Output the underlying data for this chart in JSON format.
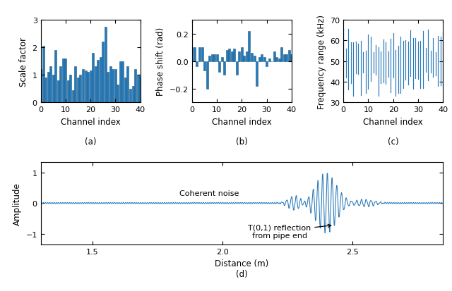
{
  "bar_color": "#2878b8",
  "bar_edge_color": "#1a5f8a",
  "n_channels": 41,
  "scale_factor_values": [
    1.2,
    2.05,
    0.9,
    1.1,
    1.3,
    1.0,
    1.9,
    0.8,
    1.3,
    1.6,
    1.6,
    0.8,
    1.0,
    0.45,
    1.3,
    0.9,
    1.0,
    1.2,
    1.15,
    1.1,
    1.15,
    1.8,
    1.3,
    1.55,
    1.65,
    2.2,
    2.75,
    1.1,
    1.3,
    1.2,
    1.2,
    0.65,
    1.5,
    1.5,
    0.9,
    1.3,
    0.5,
    0.6,
    1.2,
    1.0,
    0.95
  ],
  "phase_shift_values": [
    0.1,
    0.1,
    -0.04,
    0.1,
    0.1,
    -0.07,
    -0.2,
    0.04,
    0.05,
    0.05,
    0.05,
    -0.08,
    0.03,
    -0.1,
    0.08,
    0.09,
    0.07,
    0.09,
    -0.1,
    0.07,
    0.1,
    0.04,
    0.07,
    0.22,
    0.06,
    0.04,
    -0.18,
    0.03,
    0.05,
    0.03,
    -0.04,
    0.02,
    0.0,
    0.07,
    0.03,
    0.02,
    0.1,
    0.05,
    0.05,
    0.08,
    0.05
  ],
  "subplot_labels": [
    "(a)",
    "(b)",
    "(c)",
    "(d)"
  ],
  "xlabel_channels": "Channel index",
  "ylabel_a": "Scale factor",
  "ylabel_b": "Phase shift (rad)",
  "ylabel_c": "Frequency range (kHz)",
  "ylabel_d": "Amplitude",
  "xlabel_d": "Distance (m)",
  "ylim_a": [
    0,
    3
  ],
  "ylim_b": [
    -0.3,
    0.3
  ],
  "ylim_c": [
    30,
    70
  ],
  "xlim_channels": [
    0,
    40
  ],
  "xlim_d": [
    1.3,
    2.85
  ],
  "ylim_d": [
    -1.35,
    1.35
  ],
  "yticks_a": [
    0,
    1,
    2,
    3
  ],
  "yticks_b": [
    -0.2,
    0,
    0.2
  ],
  "yticks_c": [
    30,
    40,
    50,
    60,
    70
  ],
  "yticks_d": [
    -1,
    0,
    1
  ],
  "xticks_channels": [
    0,
    10,
    20,
    30,
    40
  ],
  "xticks_d": [
    1.5,
    2.0,
    2.5
  ],
  "annotation_noise": "Coherent noise",
  "annotation_reflection": "T(0,1) reflection\nfrom pipe end",
  "text_fontsize": 8,
  "label_fontsize": 8.5,
  "tick_fontsize": 8,
  "signal_color": "#2878b8"
}
